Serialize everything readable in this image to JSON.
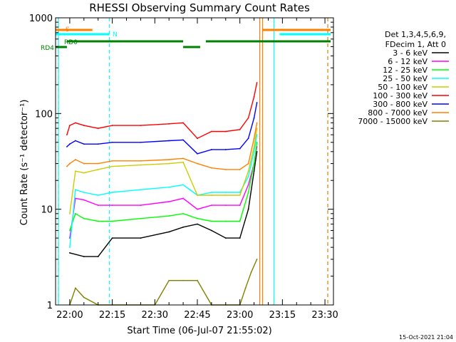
{
  "chart_data": {
    "type": "line",
    "title": "RHESSI Observing Summary Count Rates",
    "xlabel": "Start Time (06-Jul-07 21:55:02)",
    "ylabel": "Count Rate (s⁻¹ detector⁻¹)",
    "yscale": "log",
    "ylim": [
      1,
      1000
    ],
    "xlim": [
      "21:55",
      "23:33"
    ],
    "x_ticks": [
      "22:00",
      "22:15",
      "22:30",
      "22:45",
      "23:00",
      "23:15",
      "23:30"
    ],
    "y_ticks": [
      "1",
      "10",
      "100",
      "1000"
    ],
    "grid": false,
    "legend_position": "right",
    "legend_header": [
      "Det 1,3,4,5,6,9,",
      "FDecim 1, Att 0"
    ],
    "footer": "15-Oct-2021 21:04",
    "flags": [
      {
        "label": "S",
        "color": "#ff8000",
        "segments": [
          [
            "21:55",
            "22:08"
          ],
          [
            "23:08",
            "23:32"
          ]
        ]
      },
      {
        "label": "N",
        "color": "#00ffff",
        "segments": [
          [
            "21:55",
            "22:14"
          ],
          [
            "23:14",
            "23:32"
          ]
        ]
      },
      {
        "label": "RD4",
        "color": "#008000",
        "segments": [
          [
            "21:55",
            "21:59"
          ]
        ]
      },
      {
        "label": "RD0",
        "color": "#008000",
        "segments": [
          [
            "21:59",
            "22:40"
          ],
          [
            "22:48",
            "23:32"
          ]
        ]
      },
      {
        "label": "",
        "color": "#008000",
        "segments": [
          [
            "22:40",
            "22:46"
          ]
        ]
      }
    ],
    "vlines": [
      {
        "time": "21:56",
        "color": "#ff8000",
        "style": "dashed"
      },
      {
        "time": "21:56",
        "color": "#00ffff",
        "style": "solid"
      },
      {
        "time": "22:14",
        "color": "#00ffff",
        "style": "dashed"
      },
      {
        "time": "23:07",
        "color": "#ff8000",
        "style": "solid"
      },
      {
        "time": "23:08",
        "color": "#ff8000",
        "style": "solid"
      },
      {
        "time": "23:12",
        "color": "#00ffff",
        "style": "solid"
      },
      {
        "time": "23:31",
        "color": "#00ffff",
        "style": "dashed"
      },
      {
        "time": "23:31",
        "color": "#ff8000",
        "style": "dashed"
      }
    ],
    "series": [
      {
        "name": "3 - 6 keV",
        "color": "#000000",
        "x": [
          "22:00",
          "22:05",
          "22:10",
          "22:15",
          "22:25",
          "22:35",
          "22:40",
          "22:45",
          "22:50",
          "22:55",
          "23:00",
          "23:03",
          "23:05",
          "23:06"
        ],
        "y": [
          3.5,
          3.2,
          3.2,
          5.0,
          5.0,
          5.8,
          6.5,
          7.0,
          6.0,
          5.0,
          5.0,
          10,
          25,
          40
        ]
      },
      {
        "name": "6 - 12 keV",
        "color": "#ff00ff",
        "x": [
          "22:00",
          "22:02",
          "22:05",
          "22:10",
          "22:15",
          "22:25",
          "22:35",
          "22:40",
          "22:45",
          "22:50",
          "22:55",
          "23:00",
          "23:03",
          "23:05",
          "23:06"
        ],
        "y": [
          5,
          13,
          12.5,
          11,
          11,
          11,
          12,
          13,
          10,
          11,
          11,
          11,
          18,
          30,
          45
        ]
      },
      {
        "name": "12 - 25 keV",
        "color": "#00ff00",
        "x": [
          "22:00",
          "22:02",
          "22:05",
          "22:10",
          "22:15",
          "22:25",
          "22:35",
          "22:40",
          "22:45",
          "22:50",
          "22:55",
          "23:00",
          "23:03",
          "23:05",
          "23:06"
        ],
        "y": [
          6,
          9,
          8,
          7.5,
          7.5,
          8,
          8.5,
          9,
          8,
          7.5,
          7.5,
          7.5,
          15,
          30,
          50
        ]
      },
      {
        "name": "25 - 50 keV",
        "color": "#00ffff",
        "x": [
          "22:00",
          "22:02",
          "22:05",
          "22:10",
          "22:15",
          "22:25",
          "22:35",
          "22:40",
          "22:45",
          "22:50",
          "22:55",
          "23:00",
          "23:03",
          "23:05",
          "23:06"
        ],
        "y": [
          4,
          16,
          15,
          14,
          15,
          16,
          17,
          18,
          14,
          15,
          15,
          15,
          22,
          40,
          60
        ]
      },
      {
        "name": "50 - 100 keV",
        "color": "#cccc00",
        "x": [
          "22:00",
          "22:02",
          "22:05",
          "22:10",
          "22:15",
          "22:25",
          "22:35",
          "22:40",
          "22:45",
          "22:50",
          "22:55",
          "23:00",
          "23:03",
          "23:05",
          "23:06"
        ],
        "y": [
          9,
          25,
          24,
          26,
          28,
          29,
          30,
          31,
          14,
          14,
          14,
          14,
          25,
          45,
          70
        ]
      },
      {
        "name": "100 - 300 keV",
        "color": "#ff0000",
        "x": [
          "21:59",
          "22:00",
          "22:02",
          "22:05",
          "22:10",
          "22:15",
          "22:25",
          "22:35",
          "22:40",
          "22:45",
          "22:50",
          "22:55",
          "23:00",
          "23:03",
          "23:05",
          "23:06"
        ],
        "y": [
          60,
          75,
          80,
          75,
          70,
          75,
          75,
          78,
          80,
          55,
          65,
          65,
          68,
          90,
          150,
          210
        ]
      },
      {
        "name": "300 - 800 keV",
        "color": "#0000ff",
        "x": [
          "21:59",
          "22:00",
          "22:02",
          "22:05",
          "22:10",
          "22:15",
          "22:25",
          "22:35",
          "22:40",
          "22:45",
          "22:50",
          "22:55",
          "23:00",
          "23:03",
          "23:05",
          "23:06"
        ],
        "y": [
          45,
          48,
          52,
          48,
          48,
          50,
          50,
          52,
          53,
          38,
          42,
          42,
          43,
          55,
          90,
          130
        ]
      },
      {
        "name": "800 - 7000 keV",
        "color": "#ff8000",
        "x": [
          "21:59",
          "22:00",
          "22:02",
          "22:05",
          "22:10",
          "22:15",
          "22:25",
          "22:35",
          "22:40",
          "22:45",
          "22:50",
          "22:55",
          "23:00",
          "23:03",
          "23:05",
          "23:06"
        ],
        "y": [
          28,
          30,
          33,
          30,
          30,
          32,
          32,
          33,
          34,
          30,
          27,
          26,
          26,
          30,
          55,
          80
        ]
      },
      {
        "name": "7000 - 15000 keV",
        "color": "#808000",
        "x": [
          "22:00",
          "22:02",
          "22:05",
          "22:10",
          "22:15",
          "22:30",
          "22:35",
          "22:40",
          "22:45",
          "22:50",
          "22:55",
          "23:00",
          "23:02",
          "23:04",
          "23:06"
        ],
        "y": [
          1,
          1.5,
          1.2,
          1,
          1,
          1,
          1.8,
          1.8,
          1.8,
          1,
          1,
          1,
          1.5,
          2.2,
          3
        ]
      }
    ]
  }
}
